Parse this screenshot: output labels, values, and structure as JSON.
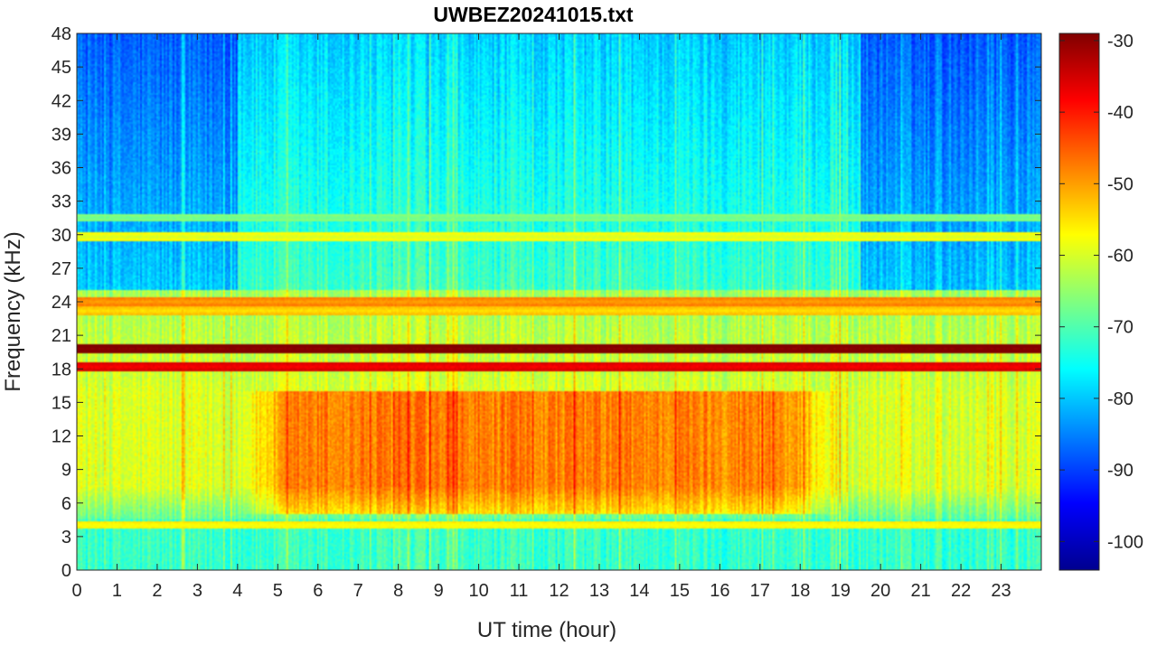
{
  "chart_data": {
    "type": "heatmap",
    "title": "UWBEZ20241015.txt",
    "xlabel": "UT time (hour)",
    "ylabel": "Frequency (kHz)",
    "x_ticks": [
      "0",
      "1",
      "2",
      "3",
      "4",
      "5",
      "6",
      "7",
      "8",
      "9",
      "10",
      "11",
      "12",
      "13",
      "14",
      "15",
      "16",
      "17",
      "18",
      "19",
      "20",
      "21",
      "22",
      "23"
    ],
    "y_ticks": [
      "0",
      "3",
      "6",
      "9",
      "12",
      "15",
      "18",
      "21",
      "24",
      "27",
      "30",
      "33",
      "36",
      "39",
      "42",
      "45",
      "48"
    ],
    "xlim": [
      0,
      24
    ],
    "ylim": [
      0,
      48
    ],
    "colorbar": {
      "ticks": [
        "-30",
        "-40",
        "-50",
        "-60",
        "-70",
        "-80",
        "-90",
        "-100"
      ],
      "range": [
        -104,
        -29
      ],
      "colormap": "jet"
    },
    "spectral_features": [
      {
        "frequency_khz": 19.8,
        "level": -30,
        "description": "strong narrowband transmitter"
      },
      {
        "frequency_khz": 18.2,
        "level": -38
      },
      {
        "frequency_khz": 24.0,
        "level": -50
      },
      {
        "frequency_khz": 23.2,
        "level": -55
      },
      {
        "frequency_khz": 29.8,
        "level": -60
      },
      {
        "frequency_khz": 31.5,
        "level": -68
      },
      {
        "frequency_khz": 4.0,
        "level": -58
      }
    ],
    "broadband_peak": {
      "frequency_range_khz": [
        5,
        16
      ],
      "time_range_hour": [
        5,
        18
      ],
      "level": -48
    },
    "background_high_freq_level": -88
  }
}
